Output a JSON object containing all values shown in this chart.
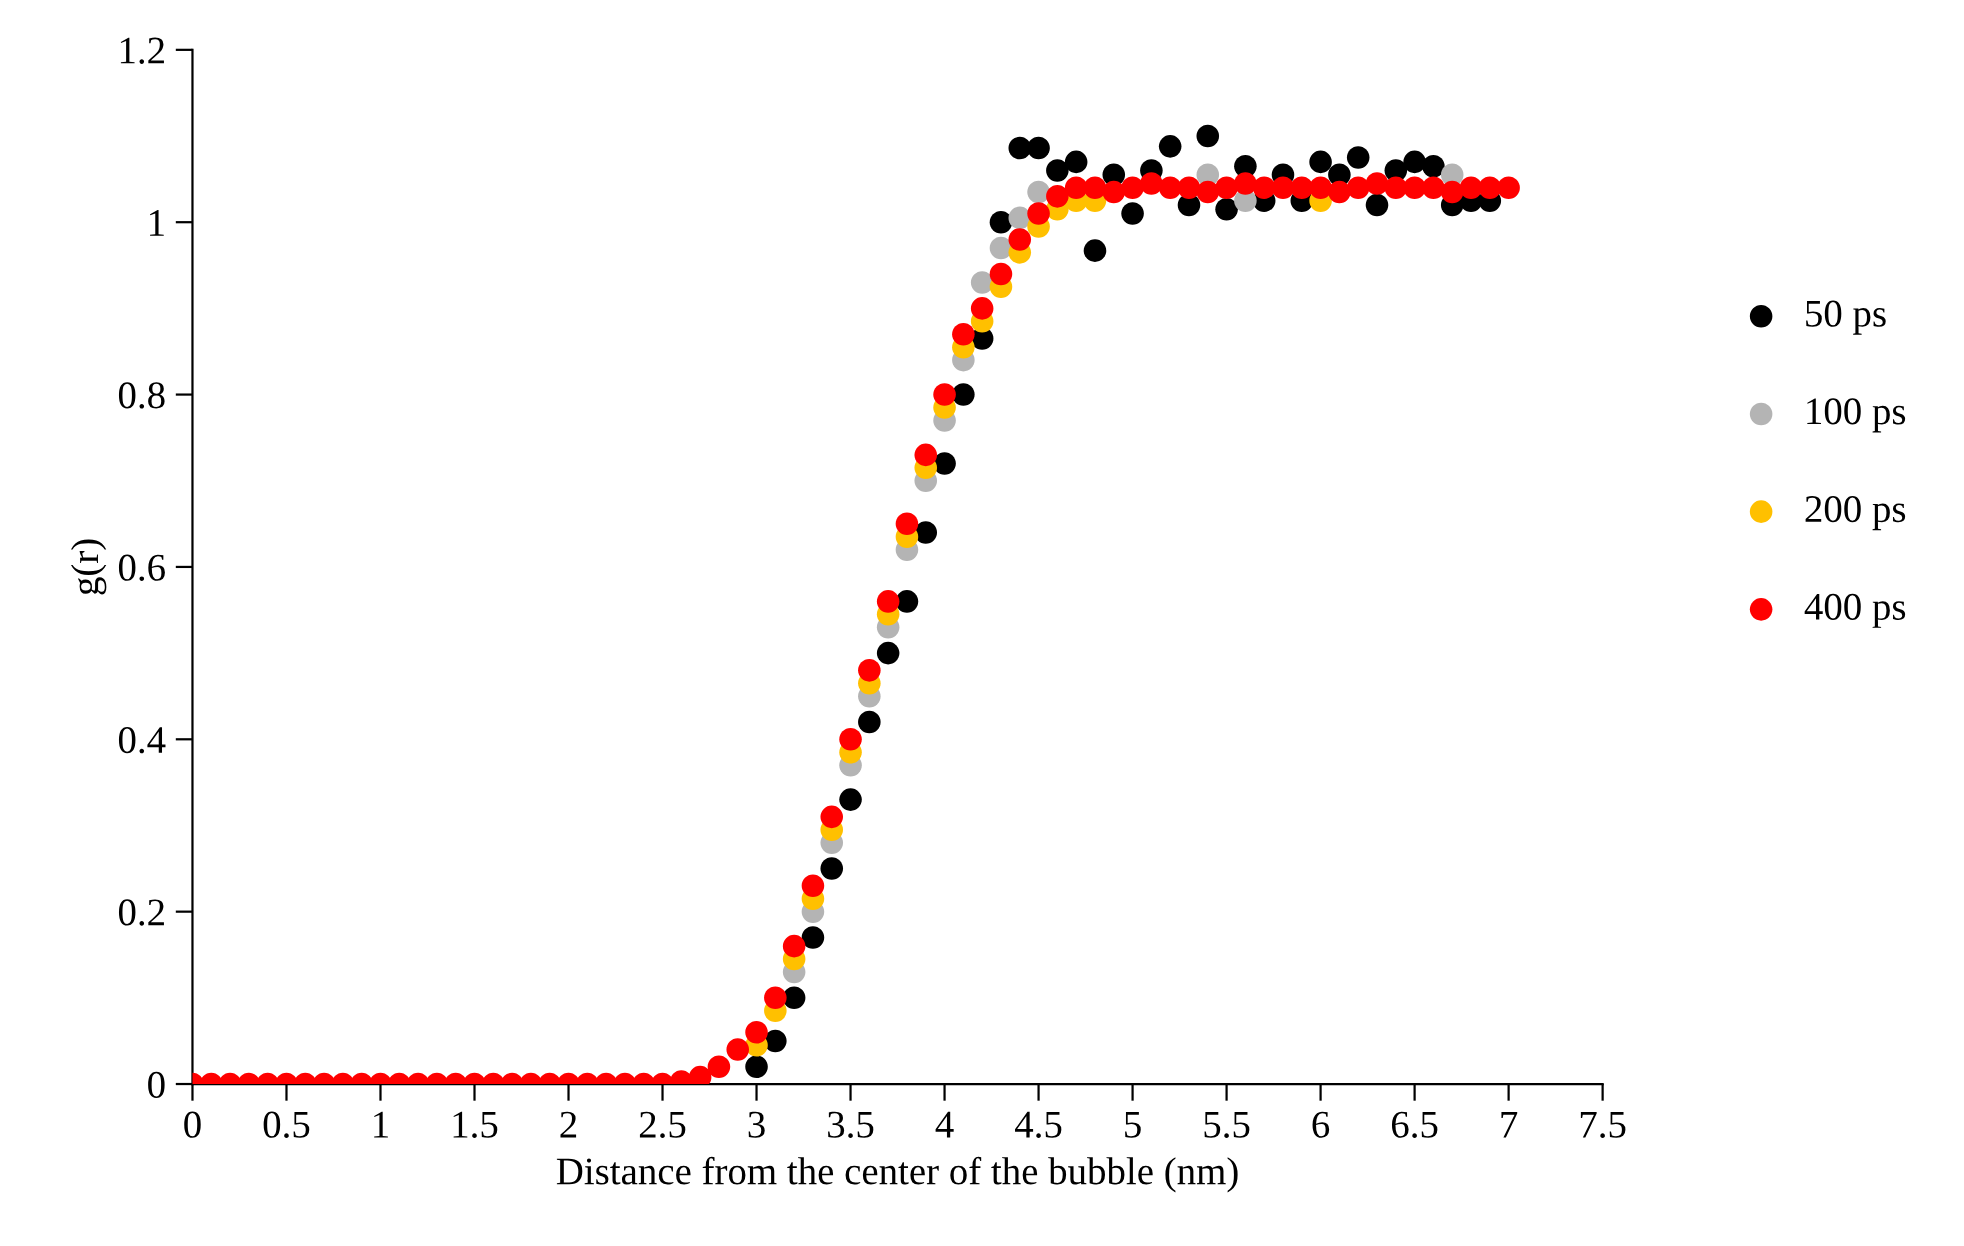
{
  "chart_data": {
    "type": "scatter",
    "xlabel": "Distance from the center of the bubble (nm)",
    "ylabel": "g(r)",
    "x": [
      0,
      0.1,
      0.2,
      0.3,
      0.4,
      0.5,
      0.6,
      0.7,
      0.8,
      0.9,
      1,
      1.1,
      1.2,
      1.3,
      1.4,
      1.5,
      1.6,
      1.7,
      1.8,
      1.9,
      2,
      2.1,
      2.2,
      2.3,
      2.4,
      2.5,
      2.6,
      2.7,
      2.8,
      2.9,
      3,
      3.1,
      3.2,
      3.3,
      3.4,
      3.5,
      3.6,
      3.7,
      3.8,
      3.9,
      4,
      4.1,
      4.2,
      4.3,
      4.4,
      4.5,
      4.6,
      4.7,
      4.8,
      4.9,
      5,
      5.1,
      5.2,
      5.3,
      5.4,
      5.5,
      5.6,
      5.7,
      5.8,
      5.9,
      6,
      6.1,
      6.2,
      6.3,
      6.4,
      6.5,
      6.6,
      6.7,
      6.8,
      6.9,
      7
    ],
    "series": [
      {
        "name": "50 ps",
        "color": "#000000",
        "values": [
          null,
          null,
          null,
          null,
          null,
          null,
          null,
          null,
          null,
          null,
          null,
          null,
          null,
          null,
          null,
          null,
          null,
          null,
          null,
          null,
          null,
          null,
          null,
          null,
          null,
          null,
          null,
          null,
          null,
          null,
          0.02,
          0.05,
          0.1,
          0.17,
          0.25,
          0.33,
          0.42,
          0.5,
          0.56,
          0.64,
          0.72,
          0.8,
          0.865,
          1.0,
          1.086,
          1.086,
          1.06,
          1.07,
          0.967,
          1.055,
          1.01,
          1.06,
          1.088,
          1.02,
          1.1,
          1.015,
          1.065,
          1.025,
          1.055,
          1.025,
          1.07,
          1.055,
          1.075,
          1.02,
          1.06,
          1.07,
          1.065,
          1.02,
          1.025,
          1.025,
          null
        ]
      },
      {
        "name": "100 ps",
        "color": "#b4b4b4",
        "values": [
          null,
          null,
          null,
          null,
          null,
          null,
          null,
          null,
          null,
          null,
          null,
          null,
          null,
          null,
          null,
          null,
          null,
          null,
          null,
          null,
          null,
          null,
          null,
          null,
          null,
          null,
          null,
          null,
          null,
          null,
          null,
          null,
          0.13,
          0.2,
          0.28,
          0.37,
          0.45,
          0.53,
          0.62,
          0.7,
          0.77,
          0.84,
          0.93,
          0.97,
          1.005,
          1.035,
          null,
          null,
          null,
          null,
          null,
          null,
          null,
          null,
          1.055,
          null,
          1.025,
          null,
          null,
          null,
          null,
          null,
          null,
          null,
          null,
          null,
          null,
          1.055,
          null,
          null,
          null
        ]
      },
      {
        "name": "200 ps",
        "color": "#ffc000",
        "values": [
          null,
          null,
          null,
          null,
          null,
          null,
          null,
          null,
          null,
          null,
          null,
          null,
          null,
          null,
          null,
          null,
          null,
          null,
          null,
          null,
          null,
          null,
          null,
          null,
          null,
          null,
          null,
          null,
          null,
          null,
          0.045,
          0.085,
          0.145,
          0.215,
          0.295,
          0.385,
          0.465,
          0.545,
          0.635,
          0.715,
          0.785,
          0.855,
          0.885,
          0.925,
          0.965,
          0.995,
          1.015,
          1.025,
          1.025,
          null,
          null,
          null,
          null,
          null,
          null,
          null,
          null,
          null,
          null,
          null,
          1.025,
          null,
          null,
          null,
          null,
          null,
          null,
          null,
          null,
          null,
          null
        ]
      },
      {
        "name": "400 ps",
        "color": "#ff0000",
        "values": [
          0,
          0,
          0,
          0,
          0,
          0,
          0,
          0,
          0,
          0,
          0,
          0,
          0,
          0,
          0,
          0,
          0,
          0,
          0,
          0,
          0,
          0,
          0,
          0,
          0,
          0,
          0.003,
          0.008,
          0.02,
          0.04,
          0.06,
          0.1,
          0.16,
          0.23,
          0.31,
          0.4,
          0.48,
          0.56,
          0.65,
          0.73,
          0.8,
          0.87,
          0.9,
          0.94,
          0.98,
          1.01,
          1.03,
          1.04,
          1.04,
          1.035,
          1.04,
          1.045,
          1.04,
          1.04,
          1.035,
          1.04,
          1.045,
          1.04,
          1.04,
          1.04,
          1.04,
          1.035,
          1.04,
          1.045,
          1.04,
          1.04,
          1.04,
          1.035,
          1.04,
          1.04,
          1.04
        ]
      }
    ],
    "xlim": [
      0,
      7.5
    ],
    "ylim": [
      0,
      1.2
    ],
    "xticks": [
      0,
      0.5,
      1,
      1.5,
      2,
      2.5,
      3,
      3.5,
      4,
      4.5,
      5,
      5.5,
      6,
      6.5,
      7,
      7.5
    ],
    "yticks": [
      0,
      0.2,
      0.4,
      0.6,
      0.8,
      1,
      1.2
    ],
    "legend": "right",
    "marker": "circle"
  }
}
